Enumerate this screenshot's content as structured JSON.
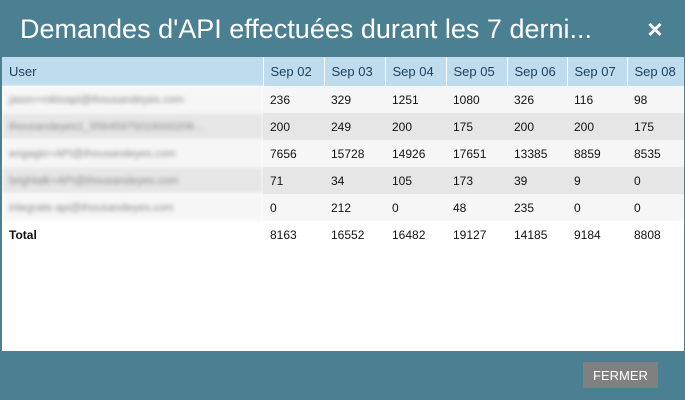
{
  "dialog": {
    "title": "Demandes d'API effectuées durant les 7 derni...",
    "close_icon": "×"
  },
  "table": {
    "headers": [
      "User",
      "Sep 02",
      "Sep 03",
      "Sep 04",
      "Sep 05",
      "Sep 06",
      "Sep 07",
      "Sep 08"
    ],
    "rows": [
      {
        "user": "jason+mktoapi@thousandeyes.com",
        "values": [
          "236",
          "329",
          "1251",
          "1080",
          "326",
          "116",
          "98"
        ]
      },
      {
        "user": "thousandeyes1_55645975019000208...",
        "values": [
          "200",
          "249",
          "200",
          "175",
          "200",
          "200",
          "175"
        ]
      },
      {
        "user": "engagio+API@thousandeyes.com",
        "values": [
          "7656",
          "15728",
          "14926",
          "17651",
          "13385",
          "8859",
          "8535"
        ]
      },
      {
        "user": "brightalk+API@thousandeyes.com",
        "values": [
          "71",
          "34",
          "105",
          "173",
          "39",
          "9",
          "0"
        ]
      },
      {
        "user": "integrate-api@thousandeyes.com",
        "values": [
          "0",
          "212",
          "0",
          "48",
          "235",
          "0",
          "0"
        ]
      }
    ],
    "total": {
      "label": "Total",
      "values": [
        "8163",
        "16552",
        "16482",
        "19127",
        "14185",
        "9184",
        "8808"
      ]
    }
  },
  "footer": {
    "close_button": "FERMER"
  },
  "colors": {
    "titlebar": "#4b7f92",
    "header_row": "#bfdcef",
    "button": "#808080"
  }
}
